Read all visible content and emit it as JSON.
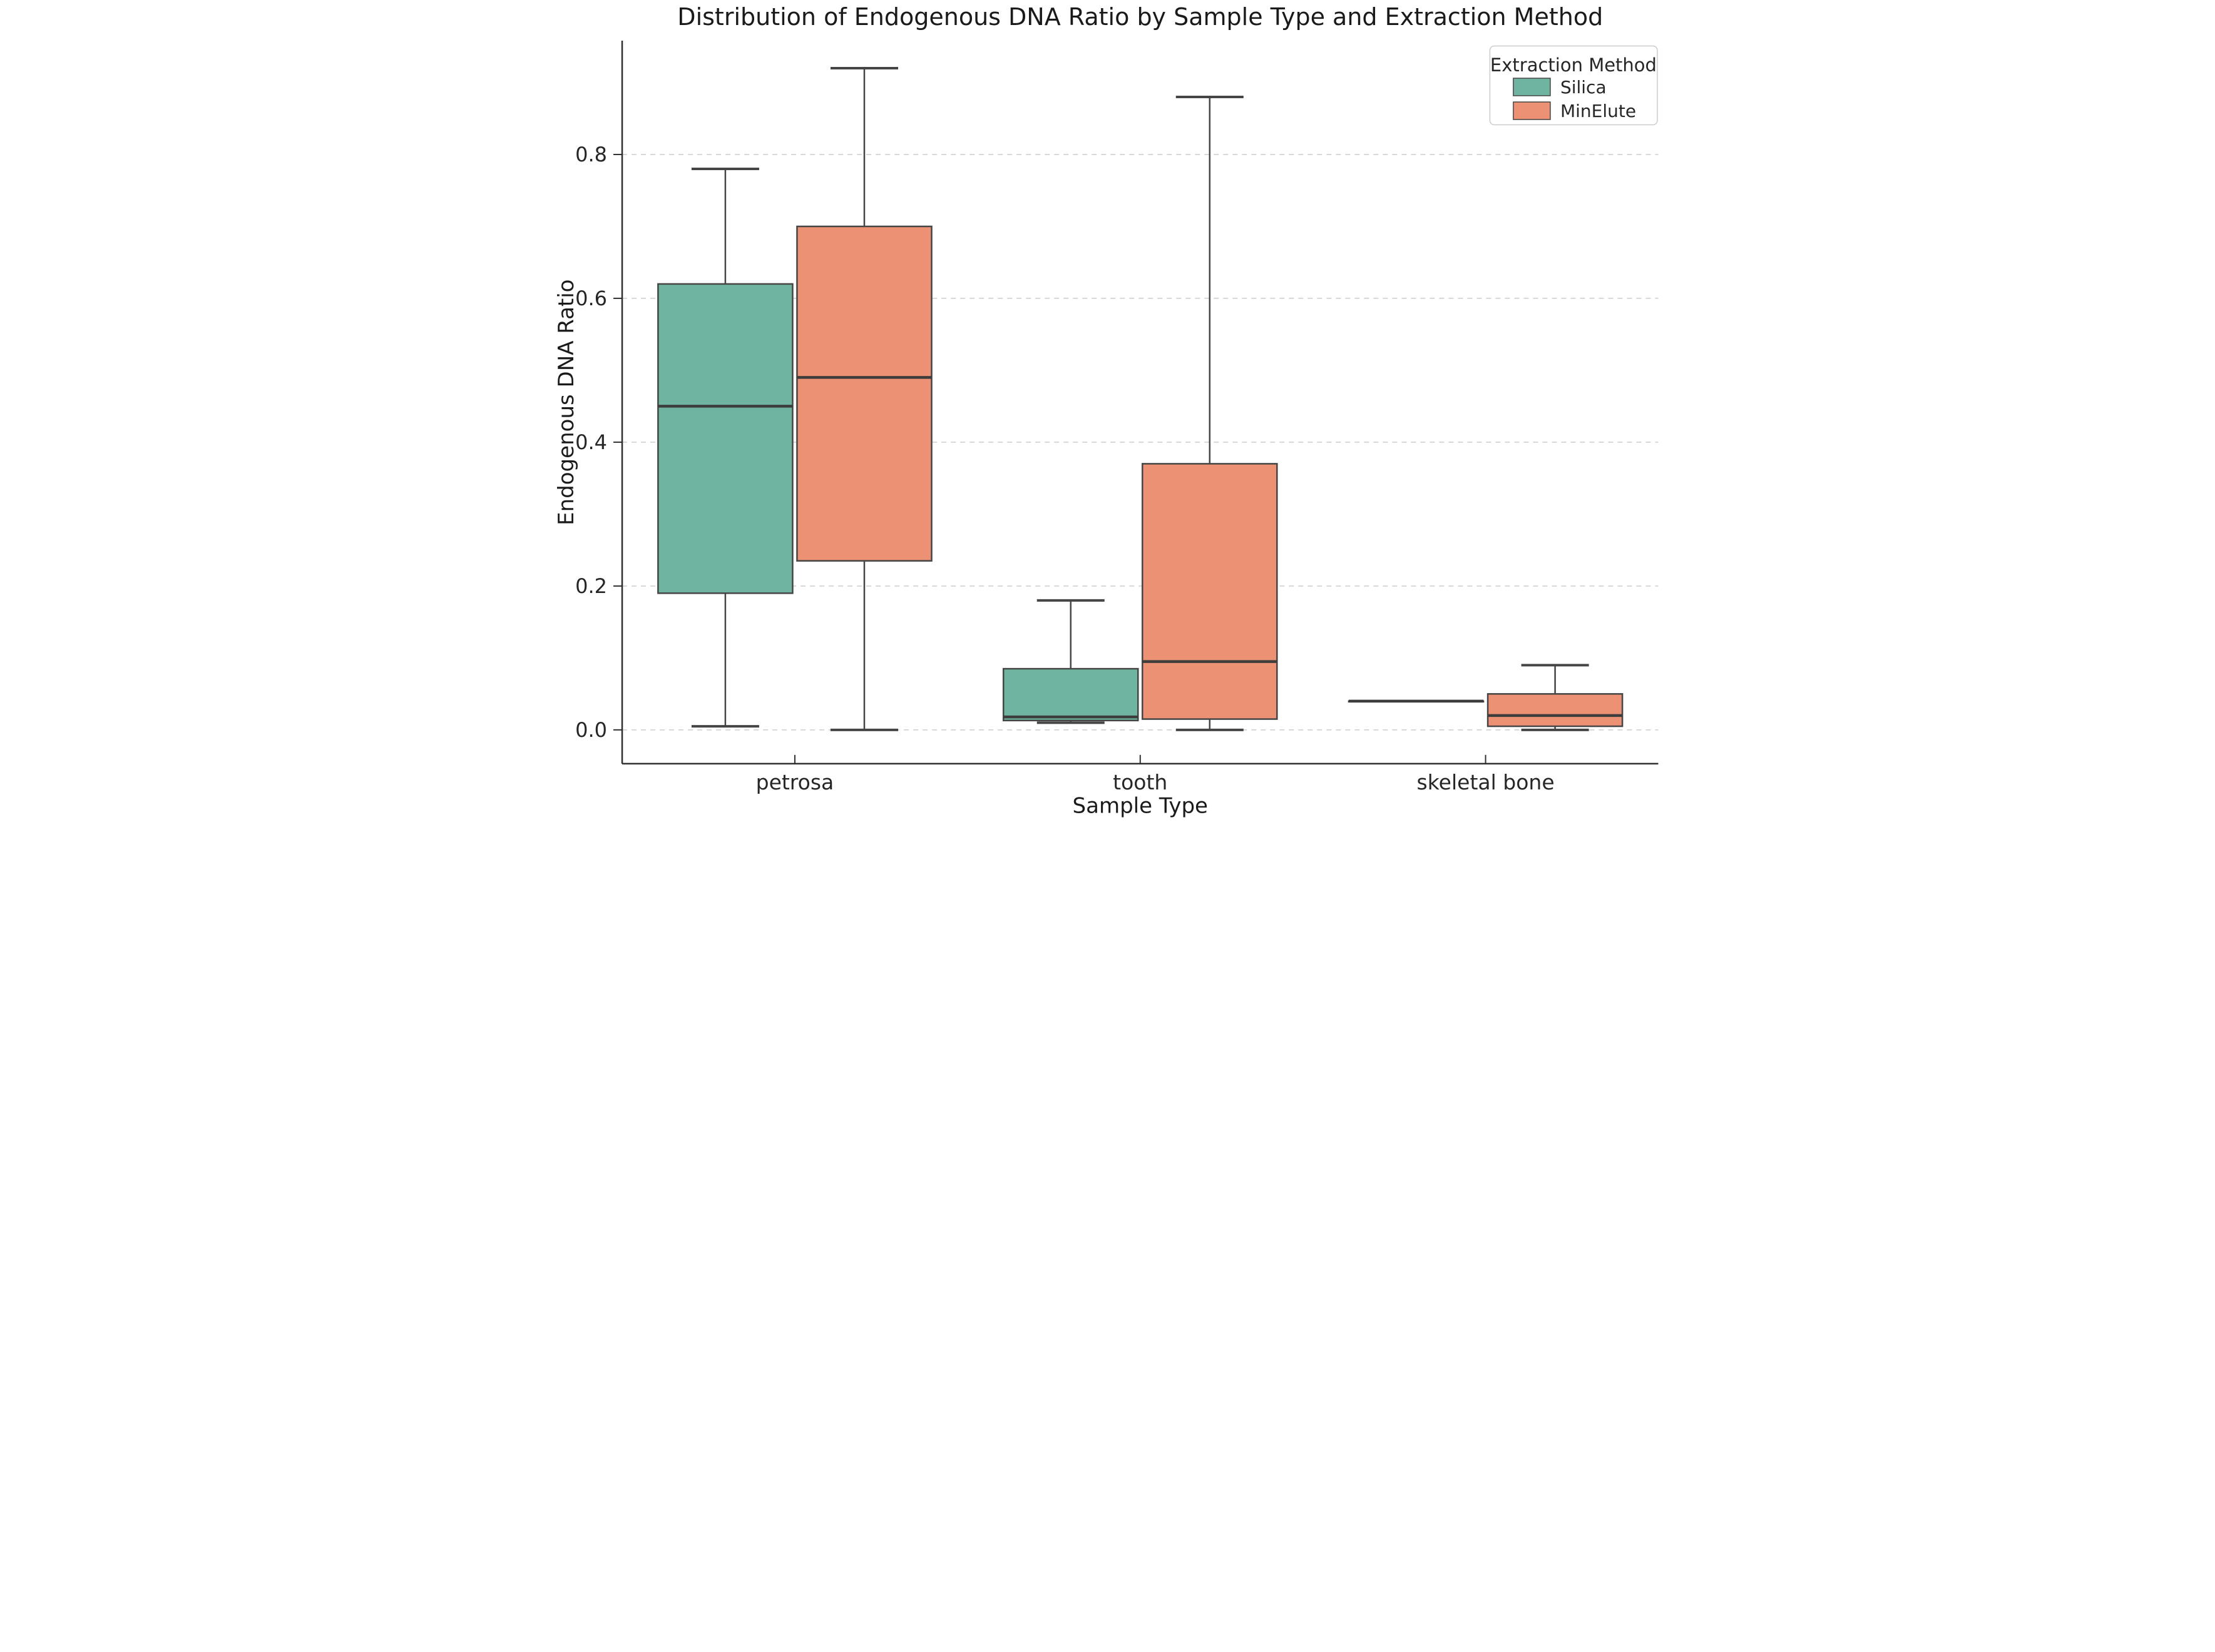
{
  "chart_data": {
    "type": "box",
    "title": "Distribution of Endogenous DNA Ratio by Sample Type and Extraction Method",
    "xlabel": "Sample Type",
    "ylabel": "Endogenous DNA Ratio",
    "categories": [
      "petrosa",
      "tooth",
      "skeletal bone"
    ],
    "ytick_labels": [
      "0.0",
      "0.2",
      "0.4",
      "0.6",
      "0.8"
    ],
    "yticks": [
      0.0,
      0.2,
      0.4,
      0.6,
      0.8
    ],
    "ylim": [
      -0.047,
      0.958
    ],
    "grid": "horizontal-dashed",
    "legend": {
      "title": "Extraction Method",
      "position": "upper-right"
    },
    "series": [
      {
        "name": "Silica",
        "color": "#6fb4a0",
        "boxes": [
          {
            "category": "petrosa",
            "whisker_low": 0.005,
            "q1": 0.19,
            "median": 0.45,
            "q3": 0.62,
            "whisker_high": 0.78
          },
          {
            "category": "tooth",
            "whisker_low": 0.01,
            "q1": 0.013,
            "median": 0.018,
            "q3": 0.085,
            "whisker_high": 0.18
          },
          {
            "category": "skeletal bone",
            "whisker_low": 0.04,
            "q1": 0.04,
            "median": 0.04,
            "q3": 0.04,
            "whisker_high": 0.04
          }
        ]
      },
      {
        "name": "MinElute",
        "color": "#ec9174",
        "boxes": [
          {
            "category": "petrosa",
            "whisker_low": 0.0,
            "q1": 0.235,
            "median": 0.49,
            "q3": 0.7,
            "whisker_high": 0.92
          },
          {
            "category": "tooth",
            "whisker_low": 0.0,
            "q1": 0.015,
            "median": 0.095,
            "q3": 0.37,
            "whisker_high": 0.88
          },
          {
            "category": "skeletal bone",
            "whisker_low": 0.0,
            "q1": 0.005,
            "median": 0.02,
            "q3": 0.05,
            "whisker_high": 0.09
          }
        ]
      }
    ],
    "colors": {
      "box_edge": "#454545",
      "whisker": "#454545",
      "median_line": "#3d3d3d",
      "spine": "#2f2f2f",
      "grid": "#cccccc",
      "legend_border": "#cccccc",
      "text": "#1a1a1a",
      "tick_text": "#262626",
      "background": "#ffffff"
    }
  }
}
